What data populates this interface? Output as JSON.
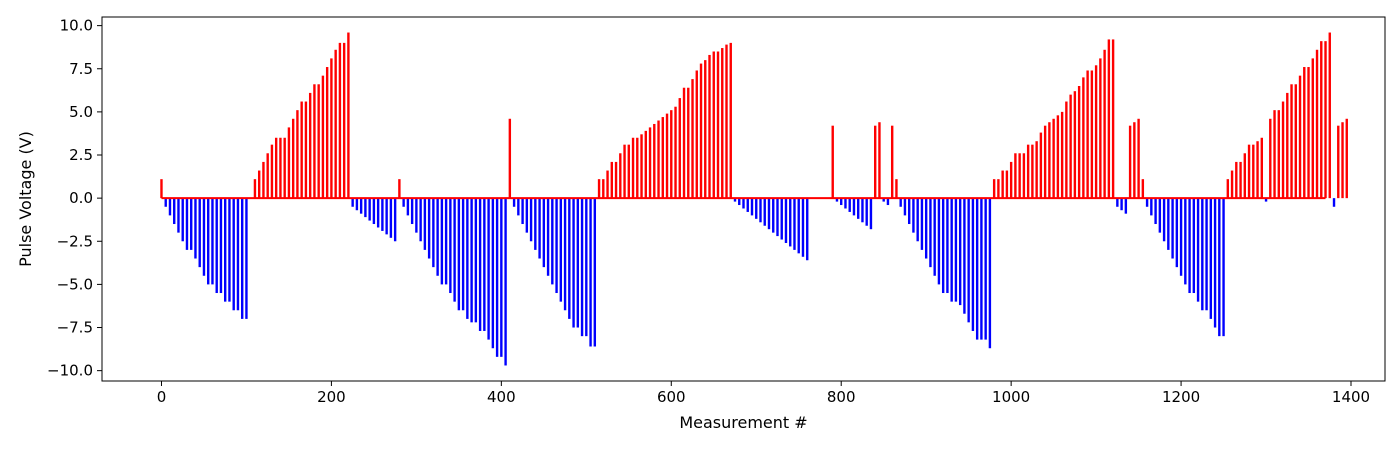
{
  "chart_data": {
    "type": "bar",
    "title": "",
    "xlabel": "Measurement #",
    "ylabel": "Pulse Voltage (V)",
    "xlim": [
      -70,
      1440
    ],
    "ylim": [
      -10.6,
      10.5
    ],
    "x_ticks": [
      0,
      200,
      400,
      600,
      800,
      1000,
      1200,
      1400
    ],
    "y_ticks": [
      -10.0,
      -7.5,
      -5.0,
      -2.5,
      0.0,
      2.5,
      5.0,
      7.5,
      10.0
    ],
    "y_tick_labels": [
      "−10.0",
      "−7.5",
      "−5.0",
      "−2.5",
      "0.0",
      "2.5",
      "5.0",
      "7.5",
      "10.0"
    ],
    "x_tick_labels": [
      "0",
      "200",
      "400",
      "600",
      "800",
      "1000",
      "1200",
      "1400"
    ],
    "grid": false,
    "legend": "none",
    "colors": {
      "positive": "#ff0000",
      "negative": "#0000ff",
      "axes": "#000000"
    },
    "x_step": 5,
    "x_start": 0,
    "baseline_span": [
      0,
      1370
    ],
    "values": [
      1.1,
      -0.5,
      -1.0,
      -1.5,
      -2.0,
      -2.5,
      -3.0,
      -3.0,
      -3.5,
      -4.0,
      -4.5,
      -5.0,
      -5.0,
      -5.5,
      -5.5,
      -6.0,
      -6.0,
      -6.5,
      -6.5,
      -7.0,
      -7.0,
      0,
      1.1,
      1.6,
      2.1,
      2.6,
      3.1,
      3.5,
      3.5,
      3.5,
      4.1,
      4.6,
      5.1,
      5.6,
      5.6,
      6.1,
      6.6,
      6.6,
      7.1,
      7.6,
      8.1,
      8.6,
      9.0,
      9.0,
      9.6,
      -0.5,
      -0.7,
      -0.9,
      -1.1,
      -1.3,
      -1.5,
      -1.7,
      -1.9,
      -2.1,
      -2.3,
      -2.5,
      1.1,
      -0.5,
      -1.0,
      -1.5,
      -2.0,
      -2.5,
      -3.0,
      -3.5,
      -4.0,
      -4.5,
      -5.0,
      -5.0,
      -5.5,
      -6.0,
      -6.5,
      -6.5,
      -7.0,
      -7.2,
      -7.2,
      -7.7,
      -7.7,
      -8.2,
      -8.7,
      -9.2,
      -9.2,
      -9.7,
      4.6,
      -0.5,
      -1.0,
      -1.5,
      -2.0,
      -2.5,
      -3.0,
      -3.5,
      -4.0,
      -4.5,
      -5.0,
      -5.5,
      -6.0,
      -6.5,
      -7.0,
      -7.5,
      -7.5,
      -8.0,
      -8.0,
      -8.6,
      -8.6,
      1.1,
      1.1,
      1.6,
      2.1,
      2.1,
      2.6,
      3.1,
      3.1,
      3.5,
      3.5,
      3.7,
      3.9,
      4.1,
      4.3,
      4.5,
      4.7,
      4.9,
      5.1,
      5.3,
      5.8,
      6.4,
      6.4,
      6.9,
      7.4,
      7.8,
      8.0,
      8.3,
      8.5,
      8.5,
      8.7,
      8.9,
      9.0,
      -0.2,
      -0.4,
      -0.6,
      -0.8,
      -1.0,
      -1.2,
      -1.4,
      -1.6,
      -1.8,
      -2.0,
      -2.2,
      -2.4,
      -2.6,
      -2.8,
      -3.0,
      -3.2,
      -3.4,
      -3.6,
      0,
      0,
      0,
      0,
      0,
      4.2,
      -0.2,
      -0.4,
      -0.6,
      -0.8,
      -1.0,
      -1.2,
      -1.4,
      -1.6,
      -1.8,
      4.2,
      4.4,
      -0.2,
      -0.4,
      4.2,
      1.1,
      -0.5,
      -1.0,
      -1.5,
      -2.0,
      -2.5,
      -3.0,
      -3.5,
      -4.0,
      -4.5,
      -5.0,
      -5.5,
      -5.5,
      -6.0,
      -6.0,
      -6.2,
      -6.7,
      -7.2,
      -7.7,
      -8.2,
      -8.2,
      -8.2,
      -8.7,
      1.1,
      1.1,
      1.6,
      1.6,
      2.1,
      2.6,
      2.6,
      2.6,
      3.1,
      3.1,
      3.3,
      3.8,
      4.2,
      4.4,
      4.6,
      4.8,
      5.0,
      5.6,
      6.0,
      6.2,
      6.5,
      7.0,
      7.4,
      7.4,
      7.7,
      8.1,
      8.6,
      9.2,
      9.2,
      -0.5,
      -0.7,
      -0.9,
      4.2,
      4.4,
      4.6,
      1.1,
      -0.5,
      -1.0,
      -1.5,
      -2.0,
      -2.5,
      -3.0,
      -3.5,
      -4.0,
      -4.5,
      -5.0,
      -5.5,
      -5.5,
      -6.0,
      -6.5,
      -6.5,
      -7.0,
      -7.5,
      -8.0,
      -8.0,
      1.1,
      1.6,
      2.1,
      2.1,
      2.6,
      3.1,
      3.1,
      3.3,
      3.5,
      -0.2,
      4.6,
      5.1,
      5.1,
      5.6,
      6.1,
      6.6,
      6.6,
      7.1,
      7.6,
      7.6,
      8.1,
      8.6,
      9.1,
      9.1,
      9.6,
      -0.5,
      4.2,
      4.4,
      4.6
    ]
  }
}
